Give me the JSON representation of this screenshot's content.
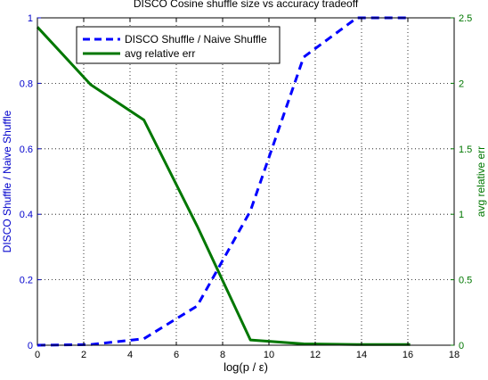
{
  "chart_data": {
    "type": "line",
    "title": "DISCO Cosine shuffle size vs accuracy tradeoff",
    "xlabel": "log(p / ε)",
    "ylabel_left": "DISCO Shuffle / Naive Shuffle",
    "ylabel_right": "avg relative err",
    "xlim": [
      0,
      18
    ],
    "ylim_left": [
      0,
      1
    ],
    "ylim_right": [
      0,
      2.5
    ],
    "xticks": [
      "0",
      "2",
      "4",
      "6",
      "8",
      "10",
      "12",
      "14",
      "16",
      "18"
    ],
    "yticks_left": [
      "0",
      "0.2",
      "0.4",
      "0.6",
      "0.8",
      "1"
    ],
    "yticks_right": [
      "0",
      "0.5",
      "1",
      "1.5",
      "2",
      "2.5"
    ],
    "grid": true,
    "legend_position": "top-left",
    "series": [
      {
        "name": "DISCO Shuffle / Naive Shuffle",
        "axis": "left",
        "style": "dashed",
        "color": "#0000ff",
        "x": [
          0,
          2.3,
          4.6,
          6.9,
          9.2,
          11.5,
          13.8,
          16.1
        ],
        "y": [
          0.0,
          0.002,
          0.02,
          0.12,
          0.41,
          0.88,
          1.0,
          1.0
        ]
      },
      {
        "name": "avg relative err",
        "axis": "right",
        "style": "solid",
        "color": "#007700",
        "x": [
          0,
          2.3,
          4.6,
          6.9,
          9.2,
          11.5,
          13.8,
          16.1
        ],
        "y": [
          2.43,
          1.99,
          1.72,
          0.91,
          0.04,
          0.01,
          0.005,
          0.005
        ]
      }
    ]
  }
}
